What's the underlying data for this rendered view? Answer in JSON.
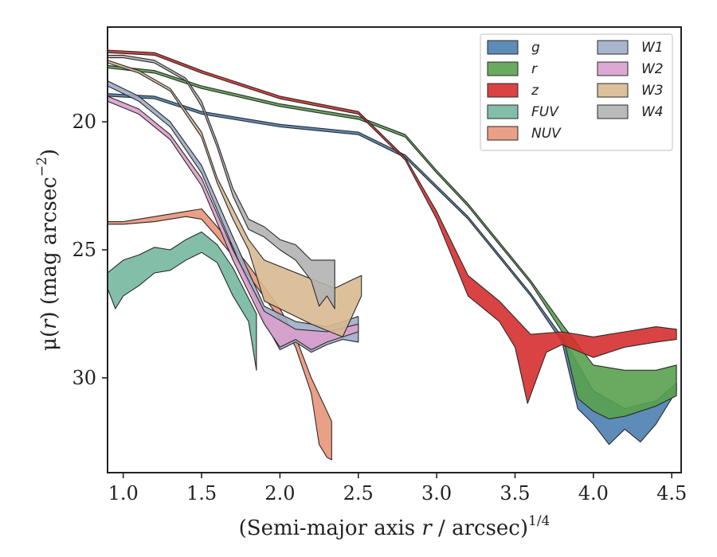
{
  "chart_data": {
    "type": "area",
    "xlabel_main": "(Semi-major axis ",
    "xlabel_var": "r",
    "xlabel_tail": " / arcsec)",
    "xlabel_sup": "1/4",
    "ylabel_pre": "μ(",
    "ylabel_var": "r",
    "ylabel_mid": ") (mag arcsec",
    "ylabel_sup": "−2",
    "ylabel_post": ")",
    "xlim": [
      0.9,
      4.56
    ],
    "ylim": [
      33.7,
      16.3
    ],
    "y_inverted": true,
    "xticks": [
      1.0,
      1.5,
      2.0,
      2.5,
      3.0,
      3.5,
      4.0,
      4.5
    ],
    "xtick_labels": [
      "1.0",
      "1.5",
      "2.0",
      "2.5",
      "3.0",
      "3.5",
      "4.0",
      "4.5"
    ],
    "yticks": [
      20,
      25,
      30
    ],
    "ytick_labels": [
      "20",
      "25",
      "30"
    ],
    "grid": false,
    "legend_position": "top-right",
    "legend_columns": 2,
    "series": [
      {
        "name": "g",
        "color": "#4c7fb0",
        "upper": [
          [
            0.9,
            18.9
          ],
          [
            1.2,
            19.0
          ],
          [
            1.5,
            19.6
          ],
          [
            2.0,
            20.1
          ],
          [
            2.5,
            20.4
          ],
          [
            2.8,
            21.3
          ],
          [
            3.0,
            22.5
          ],
          [
            3.2,
            23.7
          ],
          [
            3.4,
            25.2
          ],
          [
            3.6,
            26.7
          ],
          [
            3.8,
            28.4
          ],
          [
            4.0,
            30.5
          ],
          [
            4.2,
            31.2
          ],
          [
            4.4,
            30.9
          ],
          [
            4.53,
            30.2
          ]
        ],
        "lower": [
          [
            0.9,
            19.0
          ],
          [
            1.2,
            19.1
          ],
          [
            1.5,
            19.7
          ],
          [
            2.0,
            20.2
          ],
          [
            2.5,
            20.5
          ],
          [
            2.8,
            21.4
          ],
          [
            3.0,
            22.6
          ],
          [
            3.2,
            23.8
          ],
          [
            3.4,
            25.3
          ],
          [
            3.6,
            26.8
          ],
          [
            3.8,
            28.6
          ],
          [
            3.9,
            31.2
          ],
          [
            4.0,
            31.8
          ],
          [
            4.1,
            32.6
          ],
          [
            4.2,
            32.0
          ],
          [
            4.3,
            32.5
          ],
          [
            4.4,
            31.8
          ],
          [
            4.53,
            30.5
          ]
        ]
      },
      {
        "name": "r",
        "color": "#59a14f",
        "upper": [
          [
            0.9,
            17.8
          ],
          [
            1.2,
            18.0
          ],
          [
            1.5,
            18.6
          ],
          [
            2.0,
            19.3
          ],
          [
            2.5,
            19.8
          ],
          [
            2.8,
            20.5
          ],
          [
            3.0,
            21.9
          ],
          [
            3.2,
            23.2
          ],
          [
            3.4,
            24.7
          ],
          [
            3.6,
            26.2
          ],
          [
            3.8,
            27.9
          ],
          [
            4.0,
            29.5
          ],
          [
            4.2,
            29.7
          ],
          [
            4.4,
            29.7
          ],
          [
            4.53,
            29.5
          ]
        ],
        "lower": [
          [
            0.9,
            17.9
          ],
          [
            1.2,
            18.1
          ],
          [
            1.5,
            18.7
          ],
          [
            2.0,
            19.4
          ],
          [
            2.5,
            19.9
          ],
          [
            2.8,
            20.6
          ],
          [
            3.0,
            22.0
          ],
          [
            3.2,
            23.3
          ],
          [
            3.4,
            24.8
          ],
          [
            3.6,
            26.3
          ],
          [
            3.8,
            28.2
          ],
          [
            3.9,
            30.8
          ],
          [
            4.0,
            31.3
          ],
          [
            4.1,
            31.6
          ],
          [
            4.2,
            31.5
          ],
          [
            4.3,
            31.3
          ],
          [
            4.4,
            31.1
          ],
          [
            4.53,
            30.7
          ]
        ]
      },
      {
        "name": "z",
        "color": "#d62f2f",
        "upper": [
          [
            0.9,
            17.2
          ],
          [
            1.2,
            17.3
          ],
          [
            1.5,
            18.0
          ],
          [
            2.0,
            19.0
          ],
          [
            2.5,
            19.6
          ],
          [
            2.8,
            21.4
          ],
          [
            3.0,
            23.5
          ],
          [
            3.2,
            26.0
          ],
          [
            3.4,
            27.0
          ],
          [
            3.6,
            28.3
          ],
          [
            3.8,
            28.2
          ],
          [
            4.0,
            28.4
          ],
          [
            4.2,
            28.2
          ],
          [
            4.4,
            28.0
          ],
          [
            4.53,
            28.1
          ]
        ],
        "lower": [
          [
            0.9,
            17.3
          ],
          [
            1.2,
            17.4
          ],
          [
            1.5,
            18.1
          ],
          [
            2.0,
            19.1
          ],
          [
            2.5,
            19.7
          ],
          [
            2.8,
            21.5
          ],
          [
            3.0,
            23.8
          ],
          [
            3.2,
            26.8
          ],
          [
            3.4,
            27.8
          ],
          [
            3.5,
            28.8
          ],
          [
            3.58,
            31.0
          ],
          [
            3.7,
            29.0
          ],
          [
            3.8,
            28.7
          ],
          [
            4.0,
            29.2
          ],
          [
            4.2,
            28.8
          ],
          [
            4.4,
            28.6
          ],
          [
            4.53,
            28.5
          ]
        ]
      },
      {
        "name": "FUV",
        "color": "#76b7a0",
        "upper": [
          [
            0.9,
            25.9
          ],
          [
            1.0,
            25.4
          ],
          [
            1.1,
            25.2
          ],
          [
            1.2,
            24.9
          ],
          [
            1.3,
            25.0
          ],
          [
            1.4,
            24.6
          ],
          [
            1.5,
            24.3
          ],
          [
            1.6,
            24.8
          ],
          [
            1.7,
            25.7
          ],
          [
            1.8,
            26.9
          ],
          [
            1.85,
            27.5
          ]
        ],
        "lower": [
          [
            0.9,
            26.5
          ],
          [
            0.95,
            27.3
          ],
          [
            1.0,
            26.8
          ],
          [
            1.1,
            26.4
          ],
          [
            1.2,
            25.9
          ],
          [
            1.3,
            25.8
          ],
          [
            1.4,
            25.4
          ],
          [
            1.5,
            25.1
          ],
          [
            1.6,
            25.5
          ],
          [
            1.7,
            26.8
          ],
          [
            1.8,
            27.8
          ],
          [
            1.85,
            29.7
          ]
        ]
      },
      {
        "name": "NUV",
        "color": "#e8967a",
        "upper": [
          [
            0.9,
            23.9
          ],
          [
            1.0,
            23.9
          ],
          [
            1.2,
            23.7
          ],
          [
            1.4,
            23.5
          ],
          [
            1.5,
            23.4
          ],
          [
            1.6,
            24.1
          ],
          [
            1.8,
            25.6
          ],
          [
            2.0,
            27.3
          ],
          [
            2.1,
            28.4
          ],
          [
            2.2,
            30.0
          ],
          [
            2.3,
            31.3
          ],
          [
            2.33,
            31.7
          ]
        ],
        "lower": [
          [
            0.9,
            24.0
          ],
          [
            1.0,
            24.0
          ],
          [
            1.2,
            23.9
          ],
          [
            1.4,
            23.7
          ],
          [
            1.5,
            23.8
          ],
          [
            1.6,
            24.5
          ],
          [
            1.8,
            26.0
          ],
          [
            2.0,
            27.7
          ],
          [
            2.1,
            28.8
          ],
          [
            2.2,
            30.6
          ],
          [
            2.25,
            32.6
          ],
          [
            2.3,
            33.1
          ],
          [
            2.33,
            33.2
          ]
        ]
      },
      {
        "name": "W1",
        "color": "#a0acc8",
        "upper": [
          [
            0.9,
            18.4
          ],
          [
            1.1,
            19.0
          ],
          [
            1.3,
            20.0
          ],
          [
            1.5,
            21.7
          ],
          [
            1.7,
            24.5
          ],
          [
            1.9,
            27.2
          ],
          [
            2.1,
            27.8
          ],
          [
            2.3,
            28.0
          ],
          [
            2.5,
            27.6
          ]
        ],
        "lower": [
          [
            0.9,
            18.6
          ],
          [
            1.1,
            19.2
          ],
          [
            1.3,
            20.2
          ],
          [
            1.5,
            22.0
          ],
          [
            1.7,
            24.9
          ],
          [
            1.9,
            27.8
          ],
          [
            2.0,
            28.9
          ],
          [
            2.1,
            28.6
          ],
          [
            2.2,
            29.0
          ],
          [
            2.3,
            28.7
          ],
          [
            2.4,
            28.5
          ],
          [
            2.5,
            28.6
          ]
        ]
      },
      {
        "name": "W2",
        "color": "#d9a0cd",
        "upper": [
          [
            0.9,
            19.0
          ],
          [
            1.1,
            19.5
          ],
          [
            1.3,
            20.5
          ],
          [
            1.5,
            22.2
          ],
          [
            1.7,
            25.0
          ],
          [
            1.9,
            27.4
          ],
          [
            2.1,
            28.1
          ],
          [
            2.3,
            28.2
          ],
          [
            2.5,
            27.9
          ]
        ],
        "lower": [
          [
            0.9,
            19.2
          ],
          [
            1.1,
            19.7
          ],
          [
            1.3,
            20.7
          ],
          [
            1.5,
            22.5
          ],
          [
            1.7,
            25.4
          ],
          [
            1.9,
            27.9
          ],
          [
            2.0,
            28.8
          ],
          [
            2.1,
            28.5
          ],
          [
            2.2,
            28.9
          ],
          [
            2.3,
            28.6
          ],
          [
            2.4,
            28.4
          ],
          [
            2.5,
            28.2
          ]
        ]
      },
      {
        "name": "W3",
        "color": "#d8b991",
        "upper": [
          [
            0.9,
            17.6
          ],
          [
            1.1,
            18.0
          ],
          [
            1.3,
            18.7
          ],
          [
            1.5,
            20.4
          ],
          [
            1.6,
            22.2
          ],
          [
            1.7,
            23.4
          ],
          [
            1.8,
            24.6
          ],
          [
            1.9,
            25.4
          ],
          [
            2.35,
            26.5
          ],
          [
            2.45,
            26.2
          ],
          [
            2.52,
            26.0
          ]
        ],
        "lower": [
          [
            0.9,
            17.7
          ],
          [
            1.1,
            18.1
          ],
          [
            1.3,
            18.8
          ],
          [
            1.5,
            20.6
          ],
          [
            1.6,
            22.4
          ],
          [
            1.7,
            23.8
          ],
          [
            1.8,
            25.0
          ],
          [
            1.9,
            27.0
          ],
          [
            2.2,
            27.9
          ],
          [
            2.4,
            28.4
          ],
          [
            2.52,
            26.8
          ]
        ]
      },
      {
        "name": "W4",
        "color": "#b3b3b3",
        "upper": [
          [
            0.9,
            17.4
          ],
          [
            1.0,
            17.4
          ],
          [
            1.2,
            17.6
          ],
          [
            1.4,
            18.3
          ],
          [
            1.5,
            19.2
          ],
          [
            1.6,
            20.8
          ],
          [
            1.7,
            22.6
          ],
          [
            1.8,
            23.8
          ],
          [
            1.9,
            24.1
          ],
          [
            2.0,
            24.6
          ],
          [
            2.1,
            24.8
          ],
          [
            2.2,
            25.4
          ],
          [
            2.35,
            25.4
          ]
        ],
        "lower": [
          [
            0.9,
            17.5
          ],
          [
            1.0,
            17.5
          ],
          [
            1.2,
            17.7
          ],
          [
            1.4,
            18.4
          ],
          [
            1.5,
            19.4
          ],
          [
            1.6,
            21.0
          ],
          [
            1.7,
            22.9
          ],
          [
            1.8,
            24.2
          ],
          [
            1.9,
            24.5
          ],
          [
            2.0,
            25.0
          ],
          [
            2.1,
            25.4
          ],
          [
            2.2,
            26.2
          ],
          [
            2.25,
            27.2
          ],
          [
            2.3,
            26.8
          ],
          [
            2.35,
            27.3
          ]
        ]
      }
    ]
  }
}
